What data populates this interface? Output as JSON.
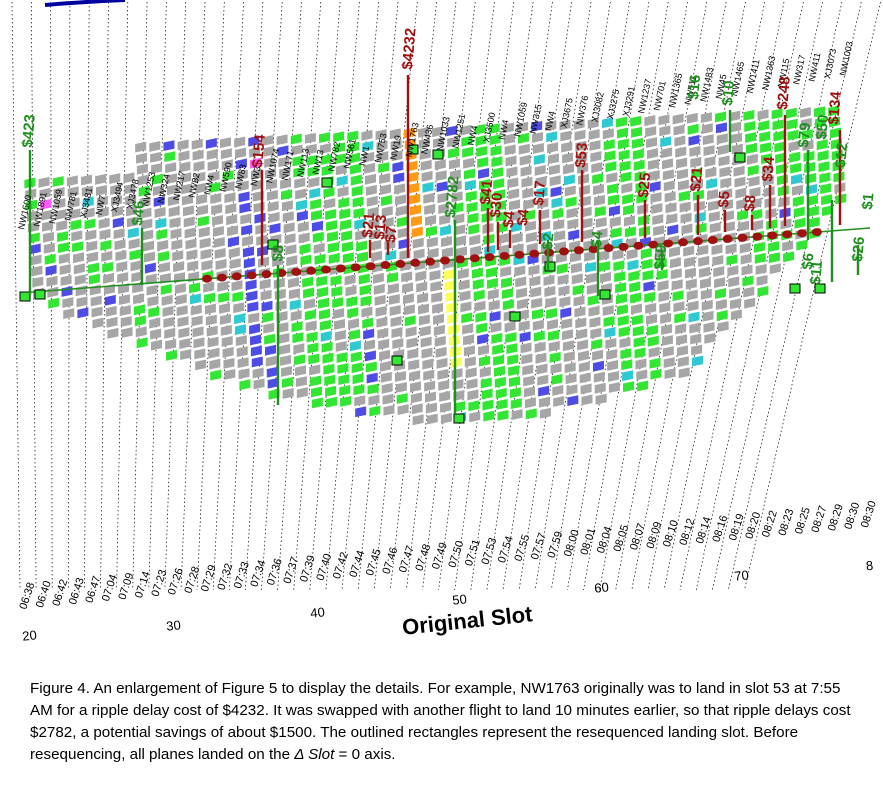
{
  "chart_data": {
    "type": "scatter",
    "subtype": "perspective slot grid (3D)",
    "xlabel": "Original Slot",
    "x_ticks": [
      20,
      30,
      40,
      50,
      60,
      70,
      "8"
    ],
    "time_labels": [
      "06:38",
      "06:40",
      "06:42",
      "06:43",
      "06:47",
      "07:04",
      "07:09",
      "07:14",
      "07:23",
      "07:26",
      "07:28",
      "07:29",
      "07:32",
      "07:33",
      "07:34",
      "07:36",
      "07:37",
      "07:39",
      "07:40",
      "07:42",
      "07:44",
      "07:45",
      "07:46",
      "07:47",
      "07:48",
      "07:49",
      "07:50",
      "07:51",
      "07:53",
      "07:54",
      "07:55",
      "07:57",
      "07:59",
      "08:00",
      "08:01",
      "08:04",
      "08:05",
      "08:07",
      "08:09",
      "08:10",
      "08:12",
      "08:14",
      "08:16",
      "08:19",
      "08:20",
      "08:22",
      "08:23",
      "08:25",
      "08:27",
      "08:29",
      "08:30",
      "08:30"
    ],
    "flight_labels": [
      "NW1600",
      "NW1891",
      "NW1059",
      "NW781",
      "XJ3481",
      "NW7",
      "XJ3494",
      "XJ3478",
      "NW1253",
      "NW324",
      "NW217",
      "NW82",
      "NW4",
      "NW590",
      "NW83",
      "NW3",
      "NW1074",
      "NW171",
      "NW113",
      "NW13",
      "NW782",
      "NW561",
      "NW1",
      "NW753",
      "NW19",
      "NW1763",
      "NW436",
      "NW1033",
      "NW1251",
      "NW4",
      "XJ3500",
      "NW4",
      "NW1059",
      "NW315",
      "NW4",
      "XJ3675",
      "NW376",
      "XJ3082",
      "XJ3275",
      "XJ3291",
      "NW1237",
      "NW701",
      "NW1365",
      "NW511",
      "NW1483",
      "NW45",
      "NW1465",
      "NW1411",
      "NW1363",
      "NW115",
      "NW317",
      "NW411",
      "XJ3073",
      "NW1003"
    ],
    "delay_cost_labels": [
      "$154",
      "$4232",
      "$21",
      "$13",
      "$7",
      "$41",
      "$30",
      "$4",
      "$4",
      "$17",
      "$53",
      "$25",
      "$21",
      "$5",
      "$8",
      "$34",
      "$248",
      "$134"
    ],
    "savings_labels": [
      "$423",
      "$46",
      "$8",
      "$2782",
      "$2",
      "$4",
      "$59",
      "$10",
      "$16",
      "$79",
      "$50",
      "$12",
      "$26",
      "$6",
      "$11",
      "$1"
    ],
    "colors": {
      "gray": "#a6a6a6",
      "green": "#33e633",
      "blue": "#4d4de6",
      "cyan": "#2fc9d2",
      "orange": "#ff9a14",
      "yellow": "#ffff5a",
      "magenta": "#ff5aff",
      "darkred": "#a01010",
      "darkgreen": "#1f8f1f",
      "topbar": "#0000a0"
    }
  },
  "caption": {
    "part1": "Figure 4. An enlargement of Figure 5 to display the details. For example, NW1763 originally was to land in slot 53 at 7:55 AM for a ripple delay cost of $4232. It was swapped with another flight to land 10 minutes earlier, so that ripple delays cost $2782, a potential savings of about $1500. The outlined rectangles represent the resequenced landing slot. Before resequencing, all planes landed on the ",
    "delta": "Δ Slot",
    "part2": " = 0 axis."
  }
}
